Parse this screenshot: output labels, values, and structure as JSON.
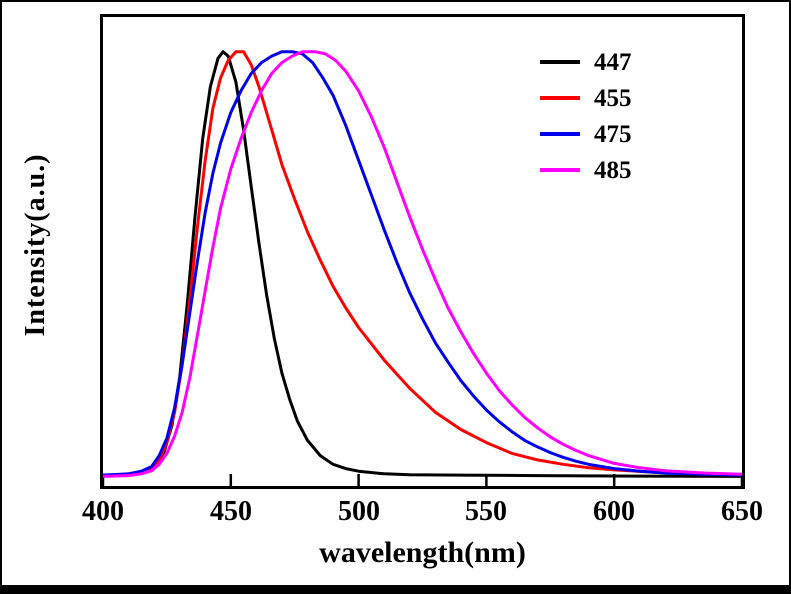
{
  "figure": {
    "xlabel": "wavelength(nm)",
    "ylabel": "Intensity(a.u.)"
  },
  "chart_data": {
    "type": "line",
    "title": "",
    "xlabel": "wavelength(nm)",
    "ylabel": "Intensity(a.u.)",
    "xlim": [
      400,
      650
    ],
    "ylim": [
      0,
      1.08
    ],
    "grid": false,
    "legend_position": "top-right",
    "x_ticks": [
      "400",
      "450",
      "500",
      "550",
      "600",
      "650"
    ],
    "x_tick_values": [
      400,
      450,
      500,
      550,
      600,
      650
    ],
    "y_ticks": [],
    "series": [
      {
        "name": "447",
        "color": "#000000",
        "peak_nm": 447,
        "points": [
          [
            400,
            0.025
          ],
          [
            405,
            0.025
          ],
          [
            410,
            0.027
          ],
          [
            415,
            0.03
          ],
          [
            418,
            0.035
          ],
          [
            421,
            0.05
          ],
          [
            424,
            0.08
          ],
          [
            427,
            0.14
          ],
          [
            430,
            0.25
          ],
          [
            433,
            0.42
          ],
          [
            436,
            0.62
          ],
          [
            439,
            0.8
          ],
          [
            442,
            0.92
          ],
          [
            445,
            0.985
          ],
          [
            447,
            1.0
          ],
          [
            449,
            0.99
          ],
          [
            452,
            0.93
          ],
          [
            455,
            0.82
          ],
          [
            458,
            0.69
          ],
          [
            461,
            0.56
          ],
          [
            464,
            0.44
          ],
          [
            467,
            0.34
          ],
          [
            470,
            0.26
          ],
          [
            473,
            0.2
          ],
          [
            476,
            0.15
          ],
          [
            480,
            0.105
          ],
          [
            485,
            0.07
          ],
          [
            490,
            0.05
          ],
          [
            495,
            0.04
          ],
          [
            500,
            0.034
          ],
          [
            510,
            0.028
          ],
          [
            520,
            0.026
          ],
          [
            540,
            0.025
          ],
          [
            570,
            0.024
          ],
          [
            600,
            0.023
          ],
          [
            650,
            0.022
          ]
        ]
      },
      {
        "name": "455",
        "color": "#ff0000",
        "peak_nm": 455,
        "points": [
          [
            400,
            0.025
          ],
          [
            410,
            0.027
          ],
          [
            415,
            0.032
          ],
          [
            419,
            0.04
          ],
          [
            422,
            0.06
          ],
          [
            425,
            0.1
          ],
          [
            428,
            0.17
          ],
          [
            431,
            0.28
          ],
          [
            434,
            0.43
          ],
          [
            437,
            0.6
          ],
          [
            440,
            0.75
          ],
          [
            443,
            0.87
          ],
          [
            446,
            0.94
          ],
          [
            449,
            0.98
          ],
          [
            452,
            1.0
          ],
          [
            455,
            1.0
          ],
          [
            458,
            0.97
          ],
          [
            461,
            0.92
          ],
          [
            464,
            0.86
          ],
          [
            467,
            0.8
          ],
          [
            470,
            0.74
          ],
          [
            475,
            0.66
          ],
          [
            480,
            0.585
          ],
          [
            485,
            0.52
          ],
          [
            490,
            0.46
          ],
          [
            495,
            0.41
          ],
          [
            500,
            0.365
          ],
          [
            510,
            0.29
          ],
          [
            520,
            0.225
          ],
          [
            530,
            0.17
          ],
          [
            540,
            0.13
          ],
          [
            550,
            0.1
          ],
          [
            560,
            0.075
          ],
          [
            570,
            0.06
          ],
          [
            580,
            0.05
          ],
          [
            590,
            0.042
          ],
          [
            600,
            0.037
          ],
          [
            615,
            0.032
          ],
          [
            630,
            0.028
          ],
          [
            650,
            0.025
          ]
        ]
      },
      {
        "name": "475",
        "color": "#0000ee",
        "peak_nm": 475,
        "points": [
          [
            400,
            0.025
          ],
          [
            410,
            0.028
          ],
          [
            415,
            0.034
          ],
          [
            419,
            0.045
          ],
          [
            422,
            0.07
          ],
          [
            425,
            0.11
          ],
          [
            428,
            0.18
          ],
          [
            431,
            0.28
          ],
          [
            434,
            0.4
          ],
          [
            437,
            0.52
          ],
          [
            440,
            0.63
          ],
          [
            443,
            0.72
          ],
          [
            446,
            0.79
          ],
          [
            450,
            0.86
          ],
          [
            454,
            0.91
          ],
          [
            458,
            0.95
          ],
          [
            462,
            0.975
          ],
          [
            466,
            0.99
          ],
          [
            470,
            1.0
          ],
          [
            474,
            1.0
          ],
          [
            478,
            0.995
          ],
          [
            482,
            0.975
          ],
          [
            486,
            0.94
          ],
          [
            490,
            0.9
          ],
          [
            495,
            0.83
          ],
          [
            500,
            0.75
          ],
          [
            505,
            0.67
          ],
          [
            510,
            0.59
          ],
          [
            515,
            0.515
          ],
          [
            520,
            0.445
          ],
          [
            525,
            0.385
          ],
          [
            530,
            0.33
          ],
          [
            535,
            0.285
          ],
          [
            540,
            0.243
          ],
          [
            545,
            0.207
          ],
          [
            550,
            0.175
          ],
          [
            555,
            0.148
          ],
          [
            560,
            0.125
          ],
          [
            565,
            0.105
          ],
          [
            570,
            0.09
          ],
          [
            575,
            0.077
          ],
          [
            580,
            0.066
          ],
          [
            585,
            0.057
          ],
          [
            590,
            0.05
          ],
          [
            600,
            0.04
          ],
          [
            610,
            0.034
          ],
          [
            620,
            0.03
          ],
          [
            635,
            0.027
          ],
          [
            650,
            0.025
          ]
        ]
      },
      {
        "name": "485",
        "color": "#ff00ff",
        "peak_nm": 485,
        "points": [
          [
            400,
            0.022
          ],
          [
            410,
            0.024
          ],
          [
            415,
            0.028
          ],
          [
            419,
            0.035
          ],
          [
            422,
            0.05
          ],
          [
            425,
            0.075
          ],
          [
            428,
            0.115
          ],
          [
            431,
            0.17
          ],
          [
            434,
            0.25
          ],
          [
            437,
            0.35
          ],
          [
            440,
            0.45
          ],
          [
            443,
            0.55
          ],
          [
            446,
            0.64
          ],
          [
            450,
            0.73
          ],
          [
            454,
            0.8
          ],
          [
            458,
            0.86
          ],
          [
            462,
            0.91
          ],
          [
            466,
            0.95
          ],
          [
            470,
            0.975
          ],
          [
            474,
            0.99
          ],
          [
            478,
            1.0
          ],
          [
            483,
            1.0
          ],
          [
            487,
            0.995
          ],
          [
            491,
            0.98
          ],
          [
            495,
            0.955
          ],
          [
            500,
            0.91
          ],
          [
            505,
            0.85
          ],
          [
            510,
            0.78
          ],
          [
            515,
            0.7
          ],
          [
            520,
            0.62
          ],
          [
            525,
            0.545
          ],
          [
            530,
            0.475
          ],
          [
            535,
            0.41
          ],
          [
            540,
            0.355
          ],
          [
            545,
            0.305
          ],
          [
            550,
            0.26
          ],
          [
            555,
            0.22
          ],
          [
            560,
            0.187
          ],
          [
            565,
            0.158
          ],
          [
            570,
            0.134
          ],
          [
            575,
            0.113
          ],
          [
            580,
            0.096
          ],
          [
            585,
            0.082
          ],
          [
            590,
            0.07
          ],
          [
            600,
            0.052
          ],
          [
            610,
            0.042
          ],
          [
            620,
            0.035
          ],
          [
            635,
            0.03
          ],
          [
            650,
            0.027
          ]
        ]
      }
    ]
  }
}
